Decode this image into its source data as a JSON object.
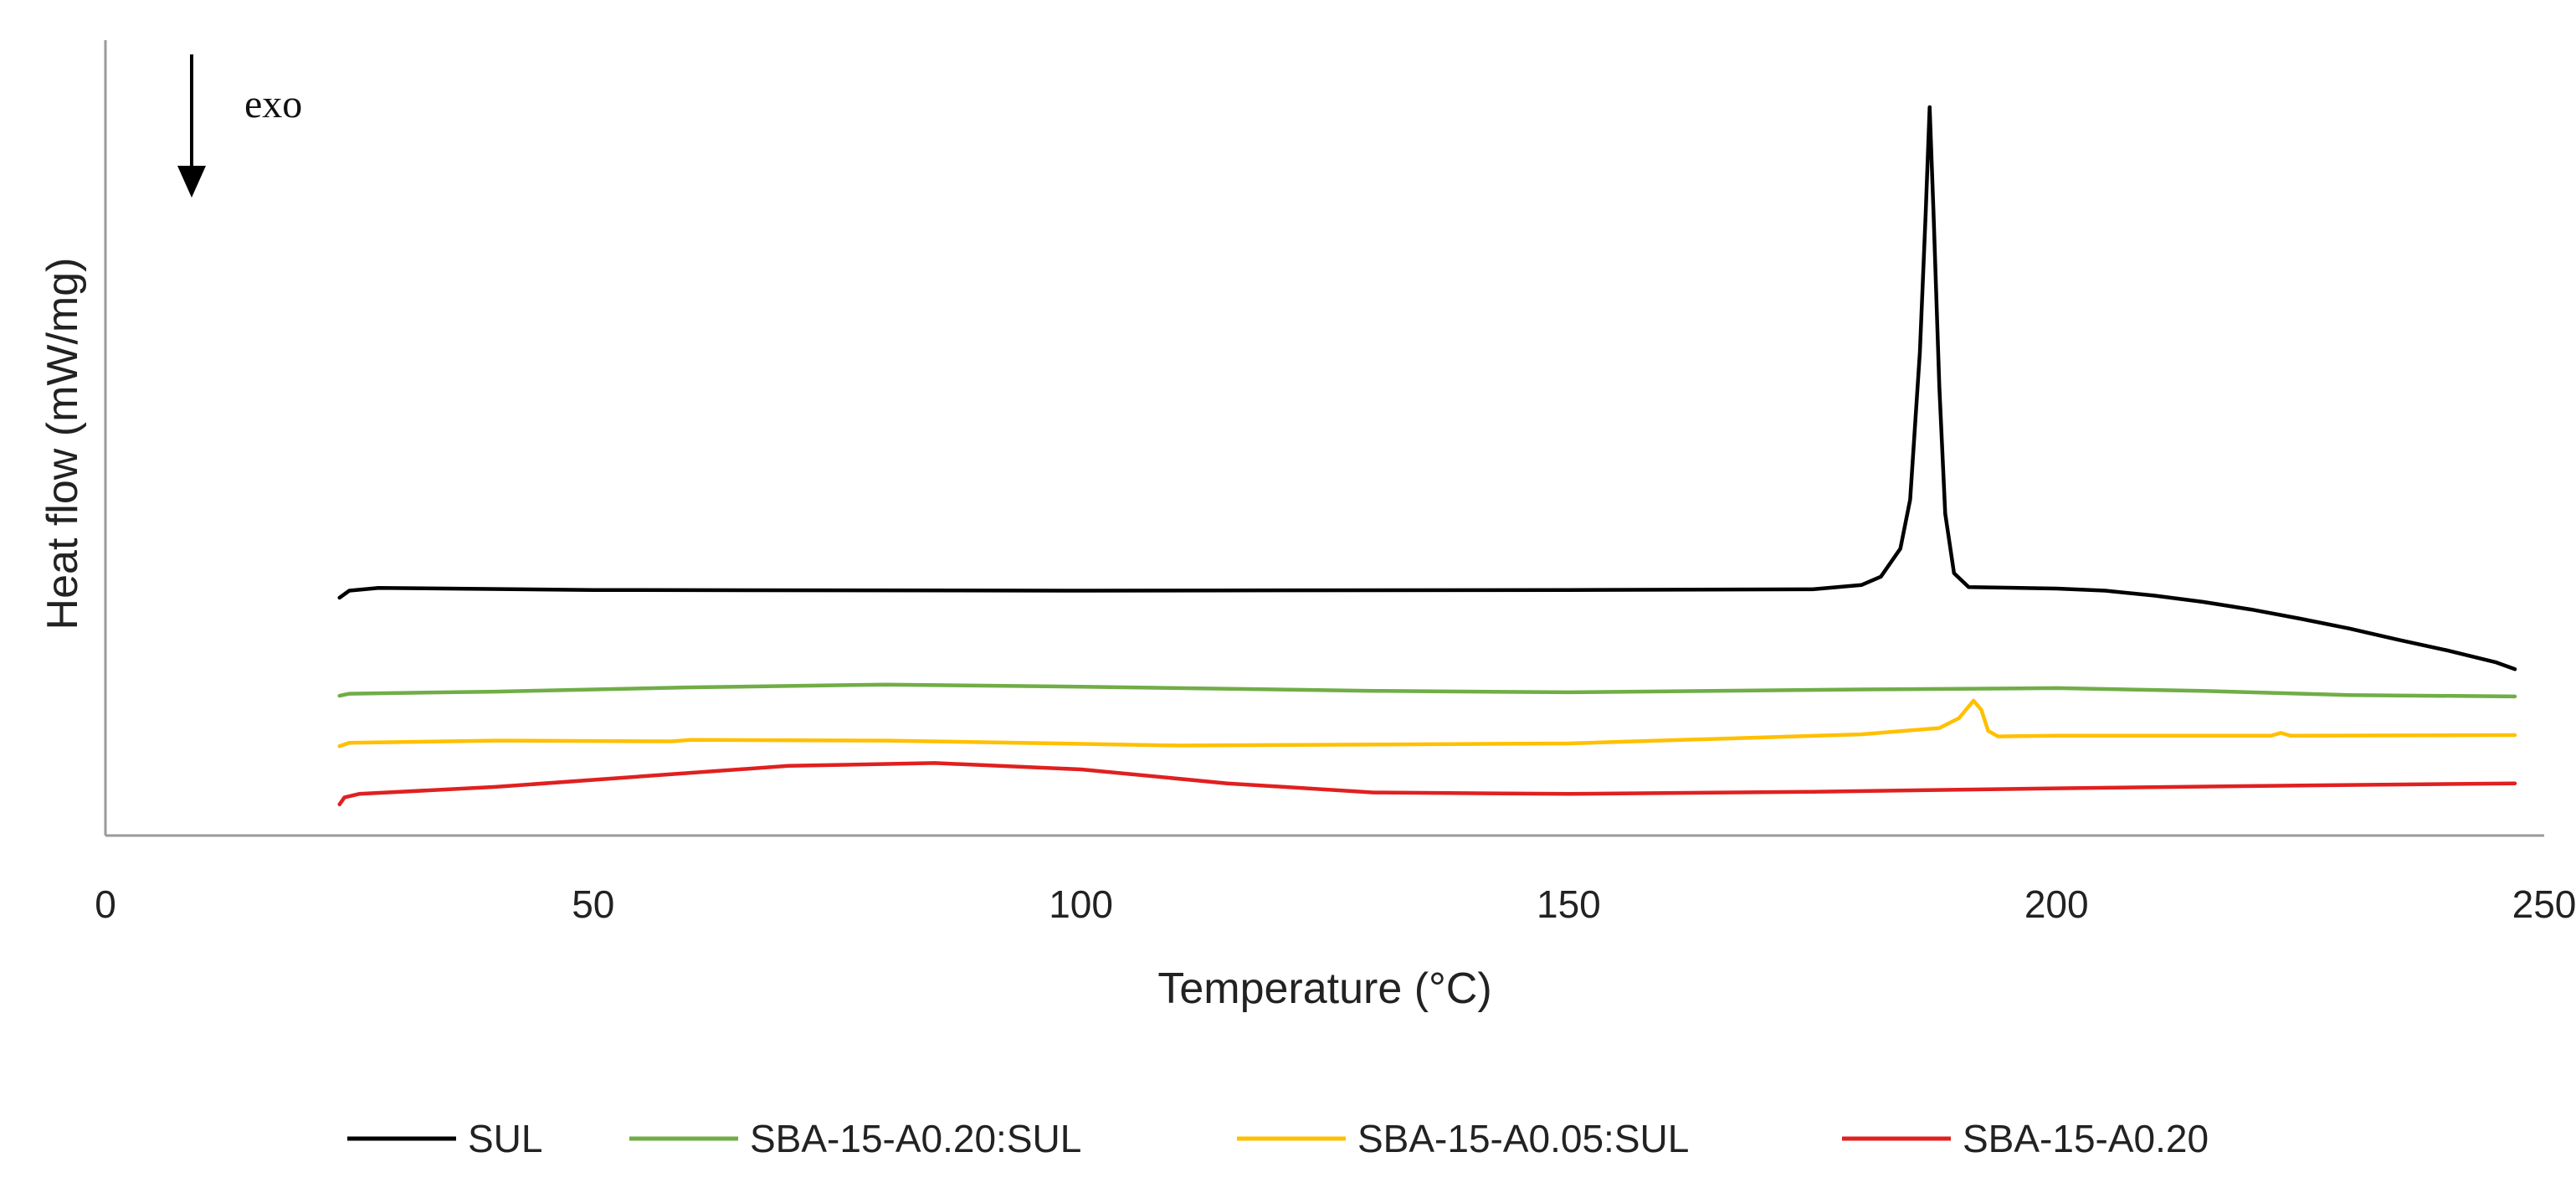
{
  "chart_data": {
    "type": "line",
    "title": "",
    "xlabel": "Temperature (°C)",
    "ylabel": "Heat flow (mW/mg)",
    "xlim": [
      0,
      250
    ],
    "ylim": [
      0,
      100
    ],
    "xticks": [
      0,
      50,
      100,
      150,
      200,
      250
    ],
    "yticks_shown": false,
    "grid": false,
    "legend_position": "bottom",
    "annotation": {
      "text": "exo",
      "arrow_direction": "down"
    },
    "series": [
      {
        "name": "SUL",
        "color": "#000000",
        "points": [
          [
            24,
            30.0
          ],
          [
            25,
            31.0
          ],
          [
            28,
            31.4
          ],
          [
            50,
            31.1
          ],
          [
            100,
            31.0
          ],
          [
            150,
            31.1
          ],
          [
            175,
            31.2
          ],
          [
            180,
            31.8
          ],
          [
            182,
            33.0
          ],
          [
            184,
            37.0
          ],
          [
            185,
            44.0
          ],
          [
            186,
            65.0
          ],
          [
            186.6,
            85.0
          ],
          [
            187,
            100.0
          ],
          [
            187.4,
            85.0
          ],
          [
            188,
            60.0
          ],
          [
            188.6,
            42.0
          ],
          [
            189.5,
            33.5
          ],
          [
            191,
            31.5
          ],
          [
            200,
            31.3
          ],
          [
            205,
            31.0
          ],
          [
            210,
            30.3
          ],
          [
            215,
            29.4
          ],
          [
            220,
            28.3
          ],
          [
            225,
            27.0
          ],
          [
            230,
            25.6
          ],
          [
            235,
            24.0
          ],
          [
            240,
            22.5
          ],
          [
            245,
            20.8
          ],
          [
            247,
            19.8
          ]
        ]
      },
      {
        "name": "SBA-15-A0.20:SUL",
        "color": "#70AD47",
        "points": [
          [
            24,
            16.0
          ],
          [
            25,
            16.3
          ],
          [
            40,
            16.6
          ],
          [
            60,
            17.2
          ],
          [
            80,
            17.6
          ],
          [
            100,
            17.3
          ],
          [
            130,
            16.7
          ],
          [
            150,
            16.5
          ],
          [
            180,
            16.9
          ],
          [
            200,
            17.1
          ],
          [
            215,
            16.7
          ],
          [
            230,
            16.1
          ],
          [
            247,
            15.9
          ]
        ]
      },
      {
        "name": "SBA-15-A0.05:SUL",
        "color": "#FFC000",
        "points": [
          [
            24,
            8.8
          ],
          [
            25,
            9.3
          ],
          [
            40,
            9.6
          ],
          [
            58,
            9.5
          ],
          [
            60,
            9.7
          ],
          [
            80,
            9.6
          ],
          [
            110,
            8.9
          ],
          [
            150,
            9.2
          ],
          [
            180,
            10.5
          ],
          [
            188,
            11.4
          ],
          [
            190,
            12.8
          ],
          [
            191.5,
            15.3
          ],
          [
            192.3,
            14.0
          ],
          [
            193,
            11.0
          ],
          [
            194,
            10.2
          ],
          [
            200,
            10.3
          ],
          [
            222,
            10.3
          ],
          [
            223,
            10.7
          ],
          [
            224,
            10.3
          ],
          [
            247,
            10.4
          ]
        ]
      },
      {
        "name": "SBA-15-A0.20",
        "color": "#E02020",
        "points": [
          [
            24,
            0.5
          ],
          [
            24.5,
            1.5
          ],
          [
            26,
            2.0
          ],
          [
            40,
            3.0
          ],
          [
            55,
            4.5
          ],
          [
            70,
            6.0
          ],
          [
            85,
            6.4
          ],
          [
            100,
            5.5
          ],
          [
            115,
            3.5
          ],
          [
            130,
            2.2
          ],
          [
            150,
            2.0
          ],
          [
            175,
            2.3
          ],
          [
            200,
            2.8
          ],
          [
            225,
            3.2
          ],
          [
            247,
            3.5
          ]
        ]
      }
    ]
  }
}
